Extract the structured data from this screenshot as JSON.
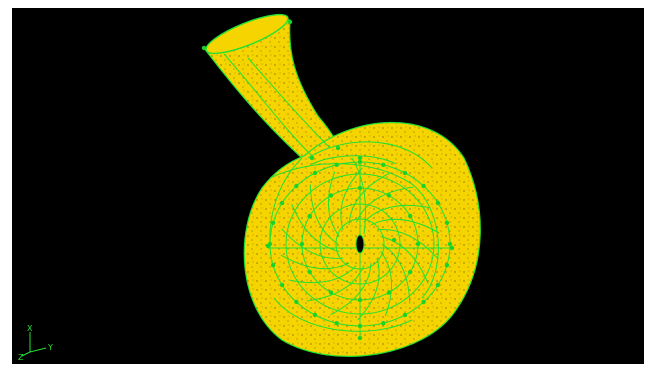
{
  "viewport": {
    "background": "#000000",
    "surface_color": "#f5d400",
    "mesh_speckle_color": "#5a4a10",
    "edge_color": "#22e033",
    "vertex_color": "#18d42a"
  },
  "triad": {
    "x_label": "X",
    "y_label": "Y",
    "z_label": "Z",
    "color": "#22e033"
  }
}
